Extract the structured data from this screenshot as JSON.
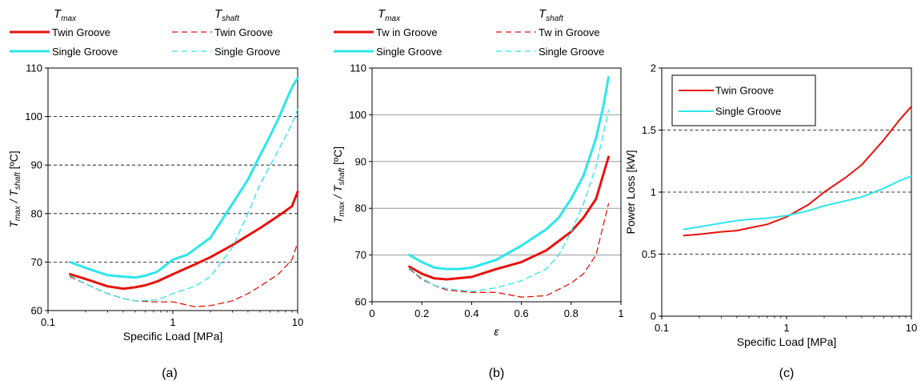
{
  "colors": {
    "twin": "#e8120c",
    "single": "#2de6ea",
    "frame": "#000000",
    "grid": "#000000",
    "grid_gray": "#9a9a9a"
  },
  "chart_data": [
    {
      "type": "line",
      "caption": "(a)",
      "xscale": "log",
      "xlim": [
        0.1,
        10
      ],
      "ylim": [
        60,
        110
      ],
      "xlabel": "Specific Load [MPa]",
      "ylabel_main": "T",
      "ylabel_sub1": "max",
      "ylabel_mid": " / T",
      "ylabel_sub2": "shaft",
      "ylabel_end": " [ºC]",
      "xticks": [
        0.1,
        1,
        10
      ],
      "xtick_labels": [
        "0.1",
        "1",
        "10"
      ],
      "yticks": [
        60,
        70,
        80,
        90,
        100,
        110
      ],
      "ytick_labels": [
        "60",
        "70",
        "80",
        "90",
        "100",
        "110"
      ],
      "grid": "horizontal-dashed",
      "legend": {
        "position": "above",
        "header_left": "T",
        "header_left_sub": "max",
        "header_right": "T",
        "header_right_sub": "shaft",
        "entries_left": [
          "Twin Groove",
          "Single Groove"
        ],
        "entries_right": [
          "Twin Groove",
          "Single Groove"
        ]
      },
      "series": [
        {
          "name": "Twin Groove",
          "group": "Tmax",
          "color_key": "twin",
          "dash": "solid",
          "width": 3,
          "x": [
            0.15,
            0.2,
            0.3,
            0.4,
            0.5,
            0.6,
            0.75,
            1.0,
            1.5,
            2.0,
            3.0,
            4.0,
            5.0,
            7.0,
            9.0,
            10.0
          ],
          "y": [
            67.5,
            66.5,
            65.0,
            64.5,
            64.8,
            65.2,
            66.0,
            67.5,
            69.5,
            71.0,
            73.5,
            75.5,
            77.0,
            79.5,
            81.5,
            84.5
          ]
        },
        {
          "name": "Single Groove",
          "group": "Tmax",
          "color_key": "single",
          "dash": "solid",
          "width": 3,
          "x": [
            0.15,
            0.2,
            0.3,
            0.4,
            0.5,
            0.6,
            0.75,
            1.0,
            1.3,
            2.0,
            3.0,
            4.0,
            5.0,
            6.0,
            7.0,
            8.0,
            9.0,
            10.0
          ],
          "y": [
            70.0,
            68.8,
            67.3,
            67.0,
            66.8,
            67.2,
            68.0,
            70.5,
            71.5,
            75.0,
            82.0,
            87.0,
            92.0,
            96.0,
            99.5,
            103.0,
            106.0,
            108.0
          ]
        },
        {
          "name": "Twin Groove",
          "group": "Tshaft",
          "color_key": "twin",
          "dash": "dashed",
          "width": 1.3,
          "x": [
            0.15,
            0.2,
            0.3,
            0.4,
            0.5,
            0.7,
            1.0,
            1.5,
            2.0,
            3.0,
            4.0,
            5.0,
            7.0,
            9.0,
            10.0
          ],
          "y": [
            67.0,
            65.5,
            63.5,
            62.5,
            62.0,
            61.8,
            61.8,
            60.8,
            61.0,
            62.0,
            63.5,
            65.0,
            67.5,
            70.5,
            74.0
          ]
        },
        {
          "name": "Single Groove",
          "group": "Tshaft",
          "color_key": "single",
          "dash": "dashed",
          "width": 1.3,
          "x": [
            0.15,
            0.2,
            0.3,
            0.4,
            0.5,
            0.75,
            1.0,
            1.5,
            2.0,
            3.0,
            4.0,
            5.0,
            7.0,
            9.0,
            10.0
          ],
          "y": [
            67.2,
            65.5,
            63.5,
            62.5,
            62.0,
            62.2,
            63.5,
            65.0,
            67.0,
            73.0,
            80.0,
            86.0,
            93.0,
            98.5,
            101.5
          ]
        }
      ]
    },
    {
      "type": "line",
      "caption": "(b)",
      "xscale": "linear",
      "xlim": [
        0,
        1
      ],
      "ylim": [
        60,
        110
      ],
      "xlabel": "ε",
      "ylabel_main": "T",
      "ylabel_sub1": "max",
      "ylabel_mid": " / T",
      "ylabel_sub2": "shaft",
      "ylabel_end": " [ºC]",
      "xticks": [
        0,
        0.2,
        0.4,
        0.6,
        0.8,
        1
      ],
      "xtick_labels": [
        "0",
        "0.2",
        "0.4",
        "0.6",
        "0.8",
        "1"
      ],
      "yticks": [
        60,
        70,
        80,
        90,
        100,
        110
      ],
      "ytick_labels": [
        "60",
        "70",
        "80",
        "90",
        "100",
        "110"
      ],
      "grid": "horizontal-solid-gray",
      "legend": {
        "position": "above",
        "header_left": "T",
        "header_left_sub": "max",
        "header_right": "T",
        "header_right_sub": "shaft",
        "entries_left": [
          "Tw in Groove",
          "Single Groove"
        ],
        "entries_right": [
          "Tw in Groove",
          "Single Groove"
        ]
      },
      "series": [
        {
          "name": "Tw in Groove",
          "group": "Tmax",
          "color_key": "twin",
          "dash": "solid",
          "width": 3,
          "x": [
            0.15,
            0.2,
            0.25,
            0.3,
            0.4,
            0.5,
            0.6,
            0.7,
            0.8,
            0.85,
            0.9,
            0.95
          ],
          "y": [
            67.5,
            66.0,
            65.0,
            64.8,
            65.3,
            67.0,
            68.5,
            71.0,
            75.0,
            78.0,
            82.0,
            91.0
          ]
        },
        {
          "name": "Single Groove",
          "group": "Tmax",
          "color_key": "single",
          "dash": "solid",
          "width": 3,
          "x": [
            0.15,
            0.2,
            0.25,
            0.3,
            0.35,
            0.4,
            0.5,
            0.6,
            0.7,
            0.75,
            0.8,
            0.85,
            0.9,
            0.93,
            0.95
          ],
          "y": [
            70.0,
            68.5,
            67.3,
            67.0,
            67.0,
            67.3,
            69.0,
            72.0,
            75.5,
            78.0,
            82.0,
            87.0,
            95.0,
            102.0,
            108.0
          ]
        },
        {
          "name": "Tw in Groove",
          "group": "Tshaft",
          "color_key": "twin",
          "dash": "dashed",
          "width": 1.3,
          "x": [
            0.15,
            0.2,
            0.25,
            0.3,
            0.4,
            0.5,
            0.6,
            0.7,
            0.8,
            0.85,
            0.9,
            0.95
          ],
          "y": [
            67.0,
            64.8,
            63.5,
            62.5,
            62.0,
            62.0,
            61.0,
            61.3,
            64.0,
            66.0,
            70.0,
            81.0
          ]
        },
        {
          "name": "Single Groove",
          "group": "Tshaft",
          "color_key": "single",
          "dash": "dashed",
          "width": 1.3,
          "x": [
            0.15,
            0.2,
            0.25,
            0.3,
            0.4,
            0.5,
            0.6,
            0.7,
            0.75,
            0.8,
            0.85,
            0.9,
            0.95
          ],
          "y": [
            67.2,
            65.0,
            63.5,
            62.8,
            62.2,
            63.0,
            64.5,
            67.0,
            70.0,
            75.0,
            81.0,
            89.0,
            101.0
          ]
        }
      ]
    },
    {
      "type": "line",
      "caption": "(c)",
      "xscale": "log",
      "xlim": [
        0.1,
        10
      ],
      "ylim": [
        0,
        2
      ],
      "xlabel": "Specific Load [MPa]",
      "ylabel": "Power Loss [kW]",
      "xticks": [
        0.1,
        1,
        10
      ],
      "xtick_labels": [
        "0.1",
        "1",
        "10"
      ],
      "yticks": [
        0,
        0.5,
        1,
        1.5,
        2
      ],
      "ytick_labels": [
        "0",
        "0.5",
        "1",
        "1.5",
        "2"
      ],
      "grid": "horizontal-dashed",
      "legend": {
        "position": "top-left",
        "entries": [
          "Twin Groove",
          "Single Groove"
        ]
      },
      "series": [
        {
          "name": "Twin Groove",
          "color_key": "twin",
          "dash": "solid",
          "width": 2,
          "x": [
            0.15,
            0.2,
            0.3,
            0.4,
            0.5,
            0.7,
            1.0,
            1.5,
            2.0,
            3.0,
            4.0,
            6.0,
            8.0,
            10.0
          ],
          "y": [
            0.65,
            0.66,
            0.68,
            0.69,
            0.71,
            0.74,
            0.8,
            0.9,
            1.0,
            1.12,
            1.22,
            1.42,
            1.58,
            1.69
          ]
        },
        {
          "name": "Single Groove",
          "color_key": "single",
          "dash": "solid",
          "width": 2,
          "x": [
            0.15,
            0.2,
            0.3,
            0.4,
            0.5,
            0.7,
            1.0,
            1.5,
            2.0,
            3.0,
            4.0,
            6.0,
            8.0,
            10.0
          ],
          "y": [
            0.7,
            0.72,
            0.75,
            0.77,
            0.78,
            0.79,
            0.81,
            0.85,
            0.89,
            0.93,
            0.96,
            1.03,
            1.09,
            1.13
          ]
        }
      ]
    }
  ]
}
